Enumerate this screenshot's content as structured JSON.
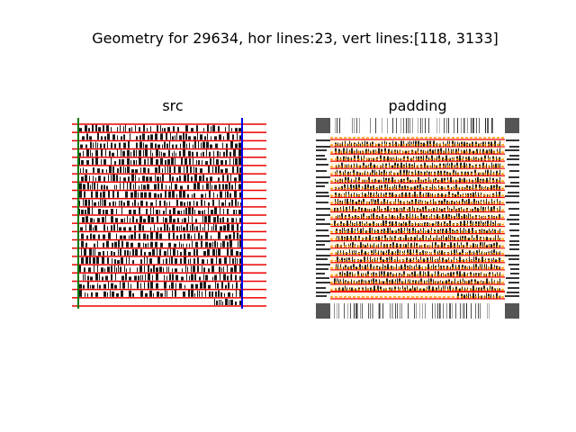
{
  "figure": {
    "suptitle": "Geometry for 29634, hor lines:23, vert lines:[118, 3133]"
  },
  "chart_data": [
    {
      "type": "image",
      "title": "src",
      "horizontal_line_count": 23,
      "vertical_lines": [
        118,
        3133
      ],
      "colors": {
        "horizontal": "#ee0000",
        "vertical_left": "#007700",
        "vertical_right": "#0000ee"
      },
      "grid": false
    },
    {
      "type": "image",
      "title": "padding",
      "horizontal_line_count": 23,
      "colors": {
        "horizontal": "#ff0000",
        "overlay": "#ff9900",
        "frame": "#555555"
      },
      "grid": false
    }
  ]
}
